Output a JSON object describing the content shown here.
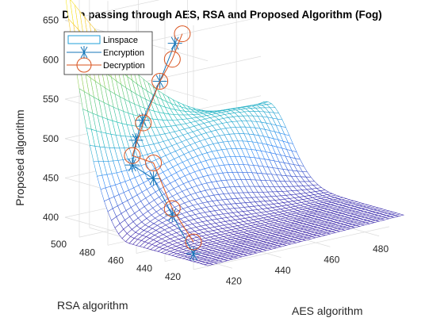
{
  "chart_data": {
    "type": "surface3d",
    "title": "Data passing through AES, RSA and Proposed Algorithm (Fog)",
    "xlabel": "AES algorithm",
    "ylabel": "RSA algorithm",
    "zlabel": "Proposed algorithm",
    "xlim": [
      410,
      490
    ],
    "ylim": [
      410,
      510
    ],
    "zlim": [
      380,
      690
    ],
    "x_ticks": [
      "420",
      "440",
      "460",
      "480"
    ],
    "y_ticks": [
      "420",
      "440",
      "460",
      "480",
      "500"
    ],
    "z_ticks": [
      "400",
      "450",
      "500",
      "550",
      "600",
      "650"
    ],
    "legend_position": "top-left",
    "series": [
      {
        "name": "Linspace",
        "marker": "surface-mesh",
        "color": "#1f9fd8"
      },
      {
        "name": "Encryption",
        "marker": "asterisk",
        "color": "#1676b8",
        "points": [
          {
            "x": 410,
            "y": 420,
            "z": 400
          },
          {
            "x": 413,
            "y": 440,
            "z": 437
          },
          {
            "x": 417,
            "y": 460,
            "z": 470
          },
          {
            "x": 420,
            "y": 480,
            "z": 475
          },
          {
            "x": 425,
            "y": 486,
            "z": 500
          },
          {
            "x": 430,
            "y": 490,
            "z": 520
          },
          {
            "x": 440,
            "y": 495,
            "z": 560
          },
          {
            "x": 452,
            "y": 505,
            "z": 595
          }
        ]
      },
      {
        "name": "Decryption",
        "marker": "circle",
        "color": "#d9531e",
        "points": [
          {
            "x": 410,
            "y": 420,
            "z": 415
          },
          {
            "x": 413,
            "y": 440,
            "z": 445
          },
          {
            "x": 417,
            "y": 460,
            "z": 490
          },
          {
            "x": 420,
            "y": 480,
            "z": 487
          },
          {
            "x": 428,
            "y": 486,
            "z": 520
          },
          {
            "x": 440,
            "y": 495,
            "z": 560
          },
          {
            "x": 448,
            "y": 500,
            "z": 580
          },
          {
            "x": 455,
            "y": 505,
            "z": 605
          }
        ]
      }
    ]
  },
  "colors": {
    "axis": "#262626",
    "grid": "#dcdcdc",
    "encryption": "#1676b8",
    "decryption": "#d9531e",
    "colormap": [
      "#3e26a8",
      "#2e87f7",
      "#1fbeb6",
      "#7ccd58",
      "#f5bf27",
      "#f9fb0e"
    ]
  }
}
